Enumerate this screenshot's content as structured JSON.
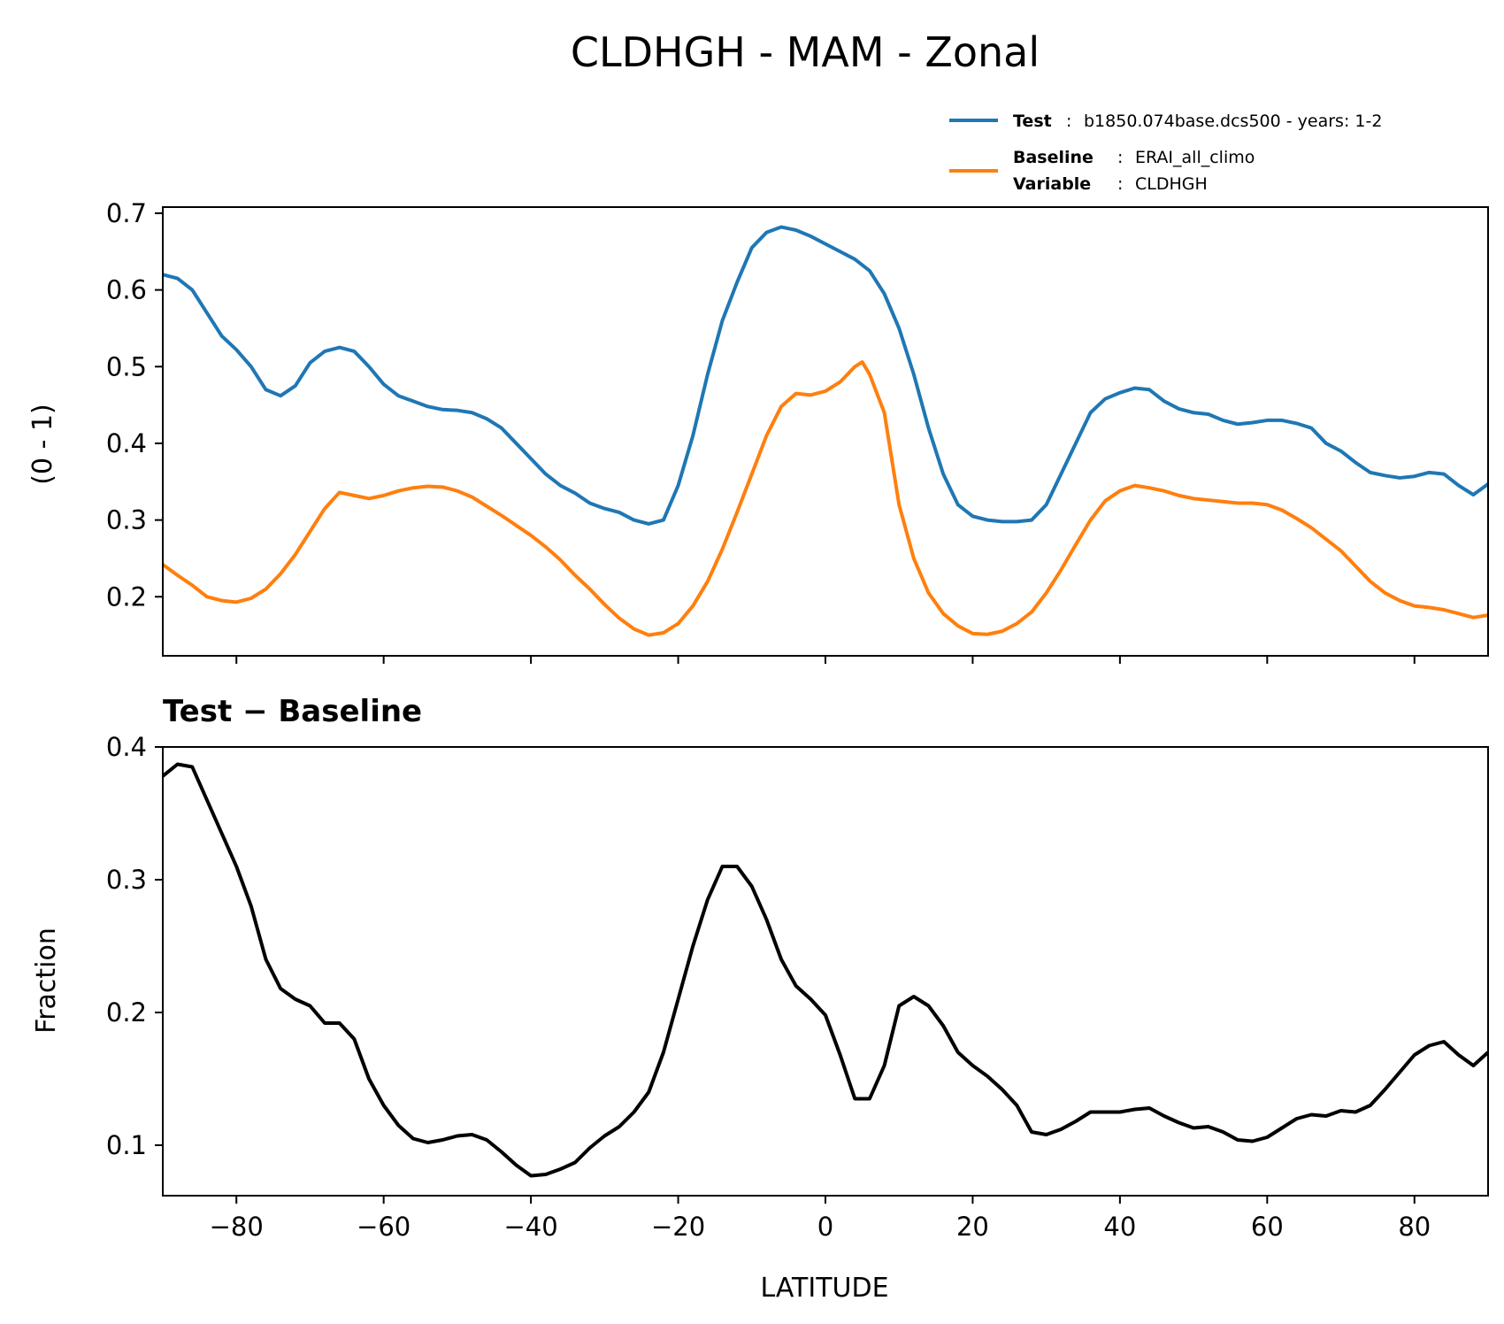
{
  "figure": {
    "title": "CLDHGH - MAM - Zonal",
    "xlabel": "LATITUDE",
    "x_ticks": [
      "−80",
      "−60",
      "−40",
      "−20",
      "0",
      "20",
      "40",
      "60",
      "80"
    ],
    "x_tick_values": [
      -80,
      -60,
      -40,
      -20,
      0,
      20,
      40,
      60,
      80
    ]
  },
  "legend": {
    "test_key": "Test",
    "test_value": "b1850.074base.dcs500 - years: 1-2",
    "baseline_key": "Baseline",
    "baseline_value": "ERAI_all_climo",
    "variable_key": "Variable",
    "variable_value": "CLDHGH",
    "sep": ":"
  },
  "colors": {
    "test": "#1f77b4",
    "baseline": "#ff7f0e",
    "diff": "#000000"
  },
  "chart_data": [
    {
      "type": "line",
      "title": "",
      "xlabel": "",
      "ylabel": "(0 - 1)",
      "xlim": [
        -90,
        90
      ],
      "ylim": [
        0.123,
        0.708
      ],
      "y_ticks": [
        "0.2",
        "0.3",
        "0.4",
        "0.5",
        "0.6",
        "0.7"
      ],
      "y_tick_values": [
        0.2,
        0.3,
        0.4,
        0.5,
        0.6,
        0.7
      ],
      "series": [
        {
          "name": "Test",
          "x": [
            -90,
            -88,
            -86,
            -84,
            -82,
            -80,
            -78,
            -76,
            -74,
            -72,
            -70,
            -68,
            -66,
            -64,
            -62,
            -60,
            -58,
            -56,
            -54,
            -52,
            -50,
            -48,
            -46,
            -44,
            -42,
            -40,
            -38,
            -36,
            -34,
            -32,
            -30,
            -28,
            -26,
            -24,
            -22,
            -20,
            -18,
            -16,
            -14,
            -12,
            -10,
            -8,
            -6,
            -4,
            -2,
            0,
            2,
            4,
            6,
            8,
            10,
            12,
            14,
            16,
            18,
            20,
            22,
            24,
            26,
            28,
            30,
            32,
            34,
            36,
            38,
            40,
            42,
            44,
            46,
            48,
            50,
            52,
            54,
            56,
            58,
            60,
            62,
            64,
            66,
            68,
            70,
            72,
            74,
            76,
            78,
            80,
            82,
            84,
            86,
            88,
            90
          ],
          "values": [
            0.62,
            0.615,
            0.6,
            0.57,
            0.54,
            0.522,
            0.5,
            0.47,
            0.462,
            0.475,
            0.505,
            0.52,
            0.525,
            0.52,
            0.5,
            0.477,
            0.462,
            0.455,
            0.448,
            0.444,
            0.443,
            0.44,
            0.432,
            0.42,
            0.4,
            0.38,
            0.36,
            0.345,
            0.335,
            0.322,
            0.315,
            0.31,
            0.3,
            0.295,
            0.3,
            0.345,
            0.41,
            0.49,
            0.56,
            0.61,
            0.655,
            0.675,
            0.682,
            0.678,
            0.67,
            0.66,
            0.65,
            0.64,
            0.625,
            0.595,
            0.55,
            0.49,
            0.42,
            0.36,
            0.32,
            0.305,
            0.3,
            0.298,
            0.298,
            0.3,
            0.32,
            0.36,
            0.4,
            0.44,
            0.458,
            0.466,
            0.472,
            0.47,
            0.455,
            0.445,
            0.44,
            0.438,
            0.43,
            0.425,
            0.427,
            0.43,
            0.43,
            0.426,
            0.42,
            0.4,
            0.39,
            0.375,
            0.362,
            0.358,
            0.355,
            0.357,
            0.362,
            0.36,
            0.345,
            0.333,
            0.347
          ]
        },
        {
          "name": "Baseline",
          "x": [
            -90,
            -88,
            -86,
            -84,
            -82,
            -80,
            -78,
            -76,
            -74,
            -72,
            -70,
            -68,
            -66,
            -64,
            -62,
            -60,
            -58,
            -56,
            -54,
            -52,
            -50,
            -48,
            -46,
            -44,
            -42,
            -40,
            -38,
            -36,
            -34,
            -32,
            -30,
            -28,
            -26,
            -24,
            -22,
            -20,
            -18,
            -16,
            -14,
            -12,
            -10,
            -8,
            -6,
            -4,
            -2,
            0,
            2,
            4,
            5,
            6,
            8,
            10,
            12,
            14,
            16,
            18,
            20,
            22,
            24,
            26,
            28,
            30,
            32,
            34,
            36,
            38,
            40,
            42,
            44,
            46,
            48,
            50,
            52,
            54,
            56,
            58,
            60,
            62,
            64,
            66,
            68,
            70,
            72,
            74,
            76,
            78,
            80,
            82,
            84,
            86,
            88,
            90
          ],
          "values": [
            0.242,
            0.228,
            0.215,
            0.2,
            0.195,
            0.193,
            0.198,
            0.21,
            0.23,
            0.255,
            0.285,
            0.315,
            0.336,
            0.332,
            0.328,
            0.332,
            0.338,
            0.342,
            0.344,
            0.343,
            0.338,
            0.33,
            0.318,
            0.306,
            0.293,
            0.28,
            0.265,
            0.248,
            0.228,
            0.21,
            0.19,
            0.172,
            0.158,
            0.15,
            0.153,
            0.165,
            0.188,
            0.22,
            0.262,
            0.31,
            0.36,
            0.41,
            0.448,
            0.465,
            0.463,
            0.468,
            0.48,
            0.5,
            0.506,
            0.49,
            0.44,
            0.32,
            0.25,
            0.205,
            0.178,
            0.162,
            0.152,
            0.151,
            0.155,
            0.165,
            0.18,
            0.205,
            0.235,
            0.268,
            0.3,
            0.325,
            0.338,
            0.345,
            0.342,
            0.338,
            0.332,
            0.328,
            0.326,
            0.324,
            0.322,
            0.322,
            0.32,
            0.313,
            0.302,
            0.29,
            0.275,
            0.26,
            0.24,
            0.22,
            0.205,
            0.195,
            0.188,
            0.186,
            0.183,
            0.178,
            0.173,
            0.176
          ]
        }
      ]
    },
    {
      "type": "line",
      "title": "Test − Baseline",
      "xlabel": "LATITUDE",
      "ylabel": "Fraction",
      "xlim": [
        -90,
        90
      ],
      "ylim": [
        0.062,
        0.4
      ],
      "y_ticks": [
        "0.1",
        "0.2",
        "0.3",
        "0.4"
      ],
      "y_tick_values": [
        0.1,
        0.2,
        0.3,
        0.4
      ],
      "series": [
        {
          "name": "Test - Baseline",
          "x": [
            -90,
            -88,
            -86,
            -84,
            -82,
            -80,
            -78,
            -76,
            -74,
            -72,
            -70,
            -68,
            -66,
            -64,
            -62,
            -60,
            -58,
            -56,
            -54,
            -52,
            -50,
            -48,
            -46,
            -44,
            -42,
            -40,
            -38,
            -36,
            -34,
            -32,
            -30,
            -28,
            -26,
            -24,
            -22,
            -20,
            -18,
            -16,
            -14,
            -12,
            -10,
            -8,
            -6,
            -4,
            -2,
            0,
            2,
            4,
            6,
            8,
            10,
            12,
            14,
            16,
            18,
            20,
            22,
            24,
            26,
            28,
            30,
            32,
            34,
            36,
            38,
            40,
            42,
            44,
            46,
            48,
            50,
            52,
            54,
            56,
            58,
            60,
            62,
            64,
            66,
            68,
            70,
            72,
            74,
            76,
            78,
            80,
            82,
            84,
            86,
            88,
            90
          ],
          "values": [
            0.378,
            0.387,
            0.385,
            0.36,
            0.335,
            0.31,
            0.28,
            0.24,
            0.218,
            0.21,
            0.205,
            0.192,
            0.192,
            0.18,
            0.15,
            0.13,
            0.115,
            0.105,
            0.102,
            0.104,
            0.107,
            0.108,
            0.104,
            0.095,
            0.085,
            0.077,
            0.078,
            0.082,
            0.087,
            0.098,
            0.107,
            0.114,
            0.125,
            0.14,
            0.17,
            0.21,
            0.25,
            0.285,
            0.31,
            0.31,
            0.295,
            0.27,
            0.24,
            0.22,
            0.21,
            0.198,
            0.168,
            0.135,
            0.135,
            0.16,
            0.205,
            0.212,
            0.205,
            0.19,
            0.17,
            0.16,
            0.152,
            0.142,
            0.13,
            0.11,
            0.108,
            0.112,
            0.118,
            0.125,
            0.125,
            0.125,
            0.127,
            0.128,
            0.122,
            0.117,
            0.113,
            0.114,
            0.11,
            0.104,
            0.103,
            0.106,
            0.113,
            0.12,
            0.123,
            0.122,
            0.126,
            0.125,
            0.13,
            0.142,
            0.155,
            0.168,
            0.175,
            0.178,
            0.168,
            0.16,
            0.17
          ]
        }
      ]
    }
  ]
}
